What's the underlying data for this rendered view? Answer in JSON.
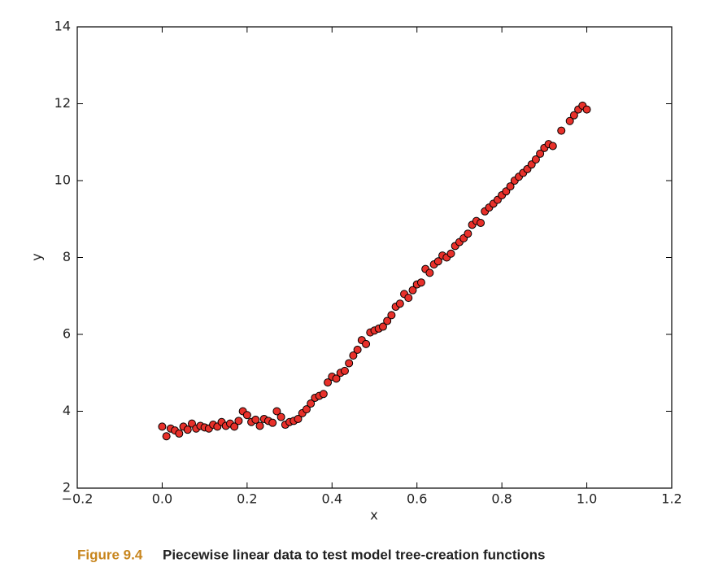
{
  "chart_data": {
    "type": "scatter",
    "caption_label": "Figure 9.4",
    "caption": "Piecewise linear data to test model tree-creation functions",
    "xlabel": "x",
    "ylabel": "y",
    "color": "#e8302a",
    "xlim": [
      -0.2,
      1.2
    ],
    "ylim": [
      2,
      14
    ],
    "xticks": [
      {
        "value": -0.2,
        "label": "−0.2"
      },
      {
        "value": 0,
        "label": "0.0"
      },
      {
        "value": 0.2,
        "label": "0.2"
      },
      {
        "value": 0.4,
        "label": "0.4"
      },
      {
        "value": 0.6,
        "label": "0.6"
      },
      {
        "value": 0.8,
        "label": "0.8"
      },
      {
        "value": 1.0,
        "label": "1.0"
      },
      {
        "value": 1.2,
        "label": "1.2"
      }
    ],
    "yticks": [
      2,
      4,
      6,
      8,
      10,
      12,
      14
    ],
    "x": [
      0.0,
      0.01,
      0.02,
      0.03,
      0.04,
      0.05,
      0.06,
      0.07,
      0.08,
      0.09,
      0.1,
      0.11,
      0.12,
      0.13,
      0.14,
      0.15,
      0.16,
      0.17,
      0.18,
      0.19,
      0.2,
      0.21,
      0.22,
      0.23,
      0.24,
      0.25,
      0.26,
      0.27,
      0.28,
      0.29,
      0.3,
      0.31,
      0.32,
      0.33,
      0.34,
      0.35,
      0.36,
      0.37,
      0.38,
      0.39,
      0.4,
      0.41,
      0.42,
      0.43,
      0.44,
      0.45,
      0.46,
      0.47,
      0.48,
      0.49,
      0.5,
      0.51,
      0.52,
      0.53,
      0.54,
      0.55,
      0.56,
      0.57,
      0.58,
      0.59,
      0.6,
      0.61,
      0.62,
      0.63,
      0.64,
      0.65,
      0.66,
      0.67,
      0.68,
      0.69,
      0.7,
      0.71,
      0.72,
      0.73,
      0.74,
      0.75,
      0.76,
      0.77,
      0.78,
      0.79,
      0.8,
      0.81,
      0.82,
      0.83,
      0.84,
      0.85,
      0.86,
      0.87,
      0.88,
      0.89,
      0.9,
      0.91,
      0.92,
      0.94,
      0.96,
      0.97,
      0.98,
      0.99,
      1.0
    ],
    "values": [
      3.6,
      3.35,
      3.55,
      3.5,
      3.42,
      3.6,
      3.52,
      3.68,
      3.55,
      3.62,
      3.58,
      3.55,
      3.65,
      3.6,
      3.72,
      3.62,
      3.68,
      3.6,
      3.75,
      4.0,
      3.9,
      3.72,
      3.78,
      3.62,
      3.8,
      3.75,
      3.7,
      4.0,
      3.85,
      3.65,
      3.72,
      3.75,
      3.8,
      3.95,
      4.05,
      4.2,
      4.35,
      4.4,
      4.45,
      4.75,
      4.9,
      4.85,
      5.0,
      5.05,
      5.25,
      5.45,
      5.6,
      5.85,
      5.75,
      6.05,
      6.1,
      6.15,
      6.2,
      6.35,
      6.5,
      6.72,
      6.8,
      7.05,
      6.95,
      7.15,
      7.3,
      7.35,
      7.7,
      7.6,
      7.82,
      7.9,
      8.05,
      8.0,
      8.1,
      8.3,
      8.4,
      8.5,
      8.62,
      8.85,
      8.95,
      8.9,
      9.2,
      9.3,
      9.4,
      9.5,
      9.62,
      9.72,
      9.85,
      10.0,
      10.1,
      10.2,
      10.3,
      10.42,
      10.55,
      10.7,
      10.85,
      10.95,
      10.9,
      11.3,
      11.55,
      11.7,
      11.85,
      11.95,
      11.85
    ]
  }
}
